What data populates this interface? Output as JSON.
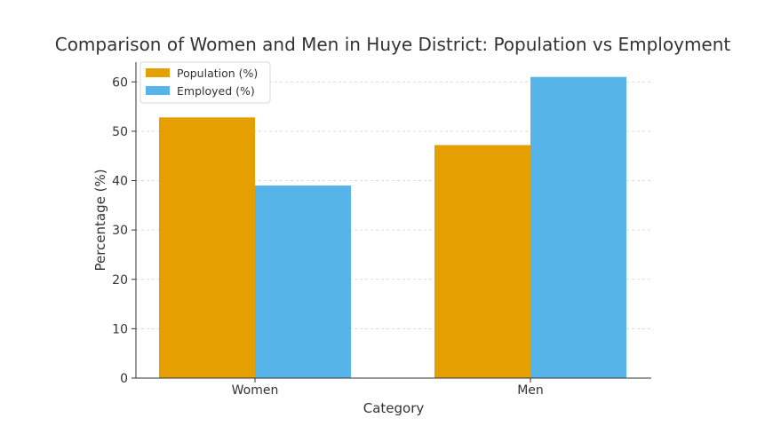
{
  "chart_data": {
    "type": "bar",
    "title": "Comparison of Women and Men in Huye District: Population vs Employment",
    "xlabel": "Category",
    "ylabel": "Percentage (%)",
    "categories": [
      "Women",
      "Men"
    ],
    "series": [
      {
        "name": "Population (%)",
        "values": [
          52.8,
          47.2
        ],
        "color": "#E69F00"
      },
      {
        "name": "Employed (%)",
        "values": [
          39,
          61
        ],
        "color": "#56B4E9"
      }
    ],
    "ylim": [
      0,
      64
    ],
    "yticks": [
      0,
      10,
      20,
      30,
      40,
      50,
      60
    ],
    "grid": true,
    "legend_position": "top-left"
  }
}
